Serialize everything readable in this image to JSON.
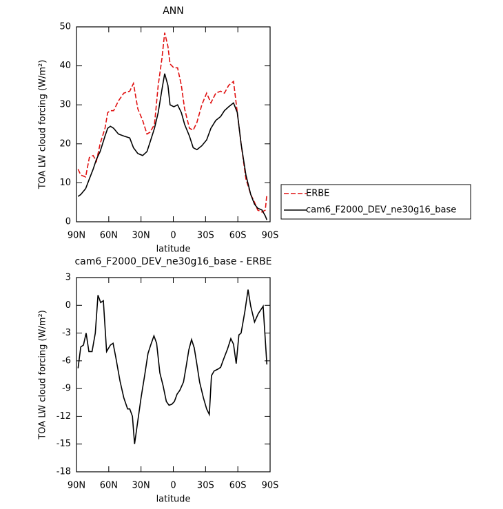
{
  "chart_data": [
    {
      "type": "line",
      "title": "ANN",
      "x_label": "latitude",
      "y_label": "TOA LW cloud forcing (W/m²)",
      "x": [
        88.5,
        86,
        81.5,
        78,
        74.5,
        71.5,
        68,
        63.5,
        61,
        58.5,
        55.5,
        51,
        46,
        40.5,
        37,
        33,
        28.5,
        24.5,
        21.5,
        17.5,
        14,
        10.5,
        8,
        5,
        3,
        -0.5,
        -4,
        -7.5,
        -10.5,
        -15,
        -18.5,
        -22,
        -26.5,
        -31,
        -35,
        -39.5,
        -44,
        -47.5,
        -51.5,
        -56,
        -59.5,
        -63,
        -67.5,
        -72,
        -75.5,
        -78.5,
        -82.5,
        -85.5,
        -87
      ],
      "series": [
        {
          "name": "ERBE",
          "color": "#e01010",
          "dashed": true,
          "values": [
            13.5,
            12,
            11.5,
            16.5,
            17,
            15.5,
            20,
            24,
            28,
            28.5,
            28.5,
            31,
            33,
            33.5,
            35.5,
            29,
            26,
            22.5,
            23,
            25,
            35,
            42,
            48.5,
            45,
            40.5,
            39.5,
            39.5,
            35,
            29,
            24,
            23.5,
            25.5,
            30,
            33,
            30.5,
            33,
            33.5,
            33,
            35,
            36,
            28,
            20,
            11,
            7,
            5,
            3,
            2.5,
            3,
            7
          ]
        },
        {
          "name": "cam6_F2000_DEV_ne30g16_base",
          "color": "#000000",
          "dashed": false,
          "values": [
            6.5,
            7,
            8.5,
            11,
            13.5,
            16,
            18,
            22,
            24,
            24.5,
            24,
            22.5,
            22,
            21.5,
            19,
            17.5,
            17,
            18,
            20.5,
            24,
            28,
            34,
            38,
            35,
            30,
            29.5,
            30,
            28,
            25,
            22,
            19,
            18.5,
            19.5,
            21,
            24,
            26,
            27,
            28.5,
            29.5,
            30.5,
            28,
            20,
            12,
            7,
            4.5,
            3.5,
            3,
            1.5,
            0.5
          ]
        }
      ],
      "xlim": [
        90,
        -90
      ],
      "xticks": [
        {
          "value": 90,
          "label": "90N"
        },
        {
          "value": 60,
          "label": "60N"
        },
        {
          "value": 30,
          "label": "30N"
        },
        0,
        {
          "value": -30,
          "label": "30S"
        },
        {
          "value": -60,
          "label": "60S"
        },
        {
          "value": -90,
          "label": "90S"
        }
      ],
      "ylim": [
        0,
        50
      ],
      "yticks": [
        0,
        10,
        20,
        30,
        40,
        50
      ],
      "legend": "right"
    },
    {
      "type": "line",
      "title": "cam6_F2000_DEV_ne30g16_base - ERBE",
      "x_label": "latitude",
      "y_label": "TOA LW cloud forcing (W/m²)",
      "x": [
        88.5,
        86,
        83.5,
        81,
        78.5,
        75.5,
        72.5,
        70,
        67.5,
        65,
        62,
        58.5,
        56,
        53.5,
        49.5,
        46,
        42.5,
        40.5,
        38,
        36,
        33,
        30,
        26.5,
        23.5,
        21,
        18,
        15.5,
        12.5,
        9.5,
        6.5,
        4,
        1.5,
        -1,
        -3.5,
        -6,
        -9.5,
        -12,
        -14.5,
        -17,
        -19.5,
        -22,
        -24.5,
        -28,
        -31,
        -33.5,
        -35.5,
        -38,
        -41.5,
        -44,
        -46.5,
        -50.5,
        -53.5,
        -56,
        -58.5,
        -61,
        -63,
        -66.5,
        -69.5,
        -72,
        -75.5,
        -79,
        -83.5,
        -87
      ],
      "values": [
        -6.8,
        -4.5,
        -4.3,
        -3,
        -5,
        -5,
        -3,
        1.1,
        0.3,
        0.5,
        -5,
        -4.3,
        -4.1,
        -5.6,
        -8.2,
        -10,
        -11.2,
        -11.2,
        -12,
        -15,
        -12.5,
        -10,
        -7.5,
        -5.2,
        -4.3,
        -3.3,
        -4.1,
        -7.3,
        -8.7,
        -10.4,
        -10.8,
        -10.7,
        -10.4,
        -9.6,
        -9.2,
        -8.3,
        -6.6,
        -4.8,
        -3.7,
        -4.6,
        -6.4,
        -8.3,
        -10,
        -11.2,
        -11.8,
        -7.6,
        -7.1,
        -6.9,
        -6.7,
        -5.9,
        -4.7,
        -3.6,
        -4.2,
        -6.3,
        -3.2,
        -3,
        -0.7,
        1.7,
        -0.1,
        -1.8,
        -0.9,
        -0.1,
        -6.4
      ],
      "color": "#000000",
      "xlim": [
        90,
        -90
      ],
      "xticks": [
        {
          "value": 90,
          "label": "90N"
        },
        {
          "value": 60,
          "label": "60N"
        },
        {
          "value": 30,
          "label": "30N"
        },
        0,
        {
          "value": -30,
          "label": "30S"
        },
        {
          "value": -60,
          "label": "60S"
        },
        {
          "value": -90,
          "label": "90S"
        }
      ],
      "ylim": [
        -18,
        3
      ],
      "yticks": [
        -18,
        -15,
        -12,
        -9,
        -6,
        -3,
        0,
        3
      ]
    }
  ]
}
